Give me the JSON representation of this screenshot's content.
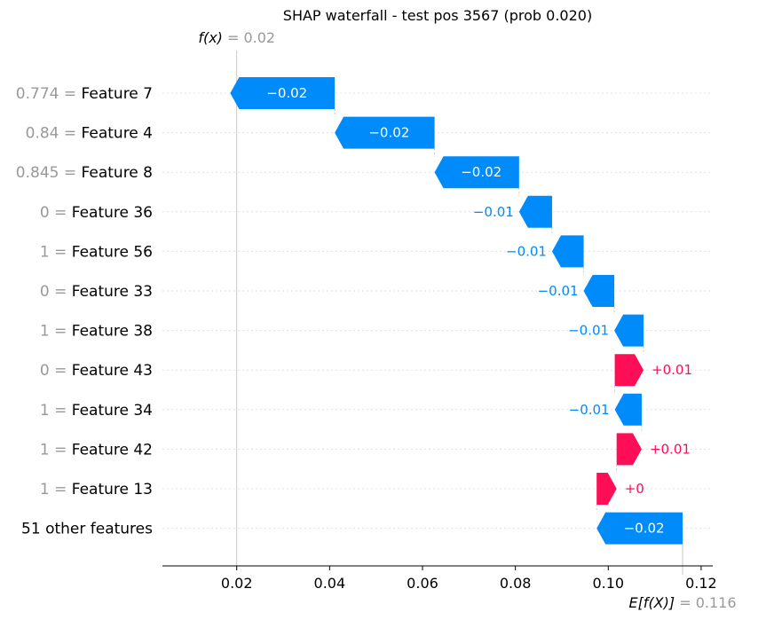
{
  "chart_data": {
    "type": "waterfall",
    "title": "SHAP waterfall - test pos 3567 (prob 0.020)",
    "fx_label": "f(x)",
    "fx_value": "0.02",
    "fx": 0.02,
    "base_label": "E[f(X)]",
    "base_value_text": "0.116",
    "base_value": 0.116,
    "xlim": [
      0.004,
      0.1225
    ],
    "xticks": [
      0.02,
      0.04,
      0.06,
      0.08,
      0.1,
      0.12
    ],
    "xtick_labels": [
      "0.02",
      "0.04",
      "0.06",
      "0.08",
      "0.10",
      "0.12"
    ],
    "rows": [
      {
        "value": "0.774",
        "feature": "Feature 7",
        "shap": -0.0225,
        "label": "−0.02"
      },
      {
        "value": "0.84",
        "feature": "Feature 4",
        "shap": -0.0215,
        "label": "−0.02"
      },
      {
        "value": "0.845",
        "feature": "Feature 8",
        "shap": -0.0182,
        "label": "−0.02"
      },
      {
        "value": "0",
        "feature": "Feature 36",
        "shap": -0.0071,
        "label": "−0.01"
      },
      {
        "value": "1",
        "feature": "Feature 56",
        "shap": -0.0068,
        "label": "−0.01"
      },
      {
        "value": "0",
        "feature": "Feature 33",
        "shap": -0.0066,
        "label": "−0.01"
      },
      {
        "value": "1",
        "feature": "Feature 38",
        "shap": -0.0063,
        "label": "−0.01"
      },
      {
        "value": "0",
        "feature": "Feature 43",
        "shap": 0.0062,
        "label": "+0.01"
      },
      {
        "value": "1",
        "feature": "Feature 34",
        "shap": -0.0058,
        "label": "−0.01"
      },
      {
        "value": "1",
        "feature": "Feature 42",
        "shap": 0.0054,
        "label": "+0.01"
      },
      {
        "value": "1",
        "feature": "Feature 13",
        "shap": 0.0043,
        "label": "+0"
      },
      {
        "value": "",
        "feature": "51 other features",
        "shap": -0.0185,
        "label": "−0.02"
      }
    ],
    "colors": {
      "positive": "#ff0d57",
      "negative": "#008bfb",
      "grey": "#999999",
      "grid": "#e0e0e0"
    }
  }
}
